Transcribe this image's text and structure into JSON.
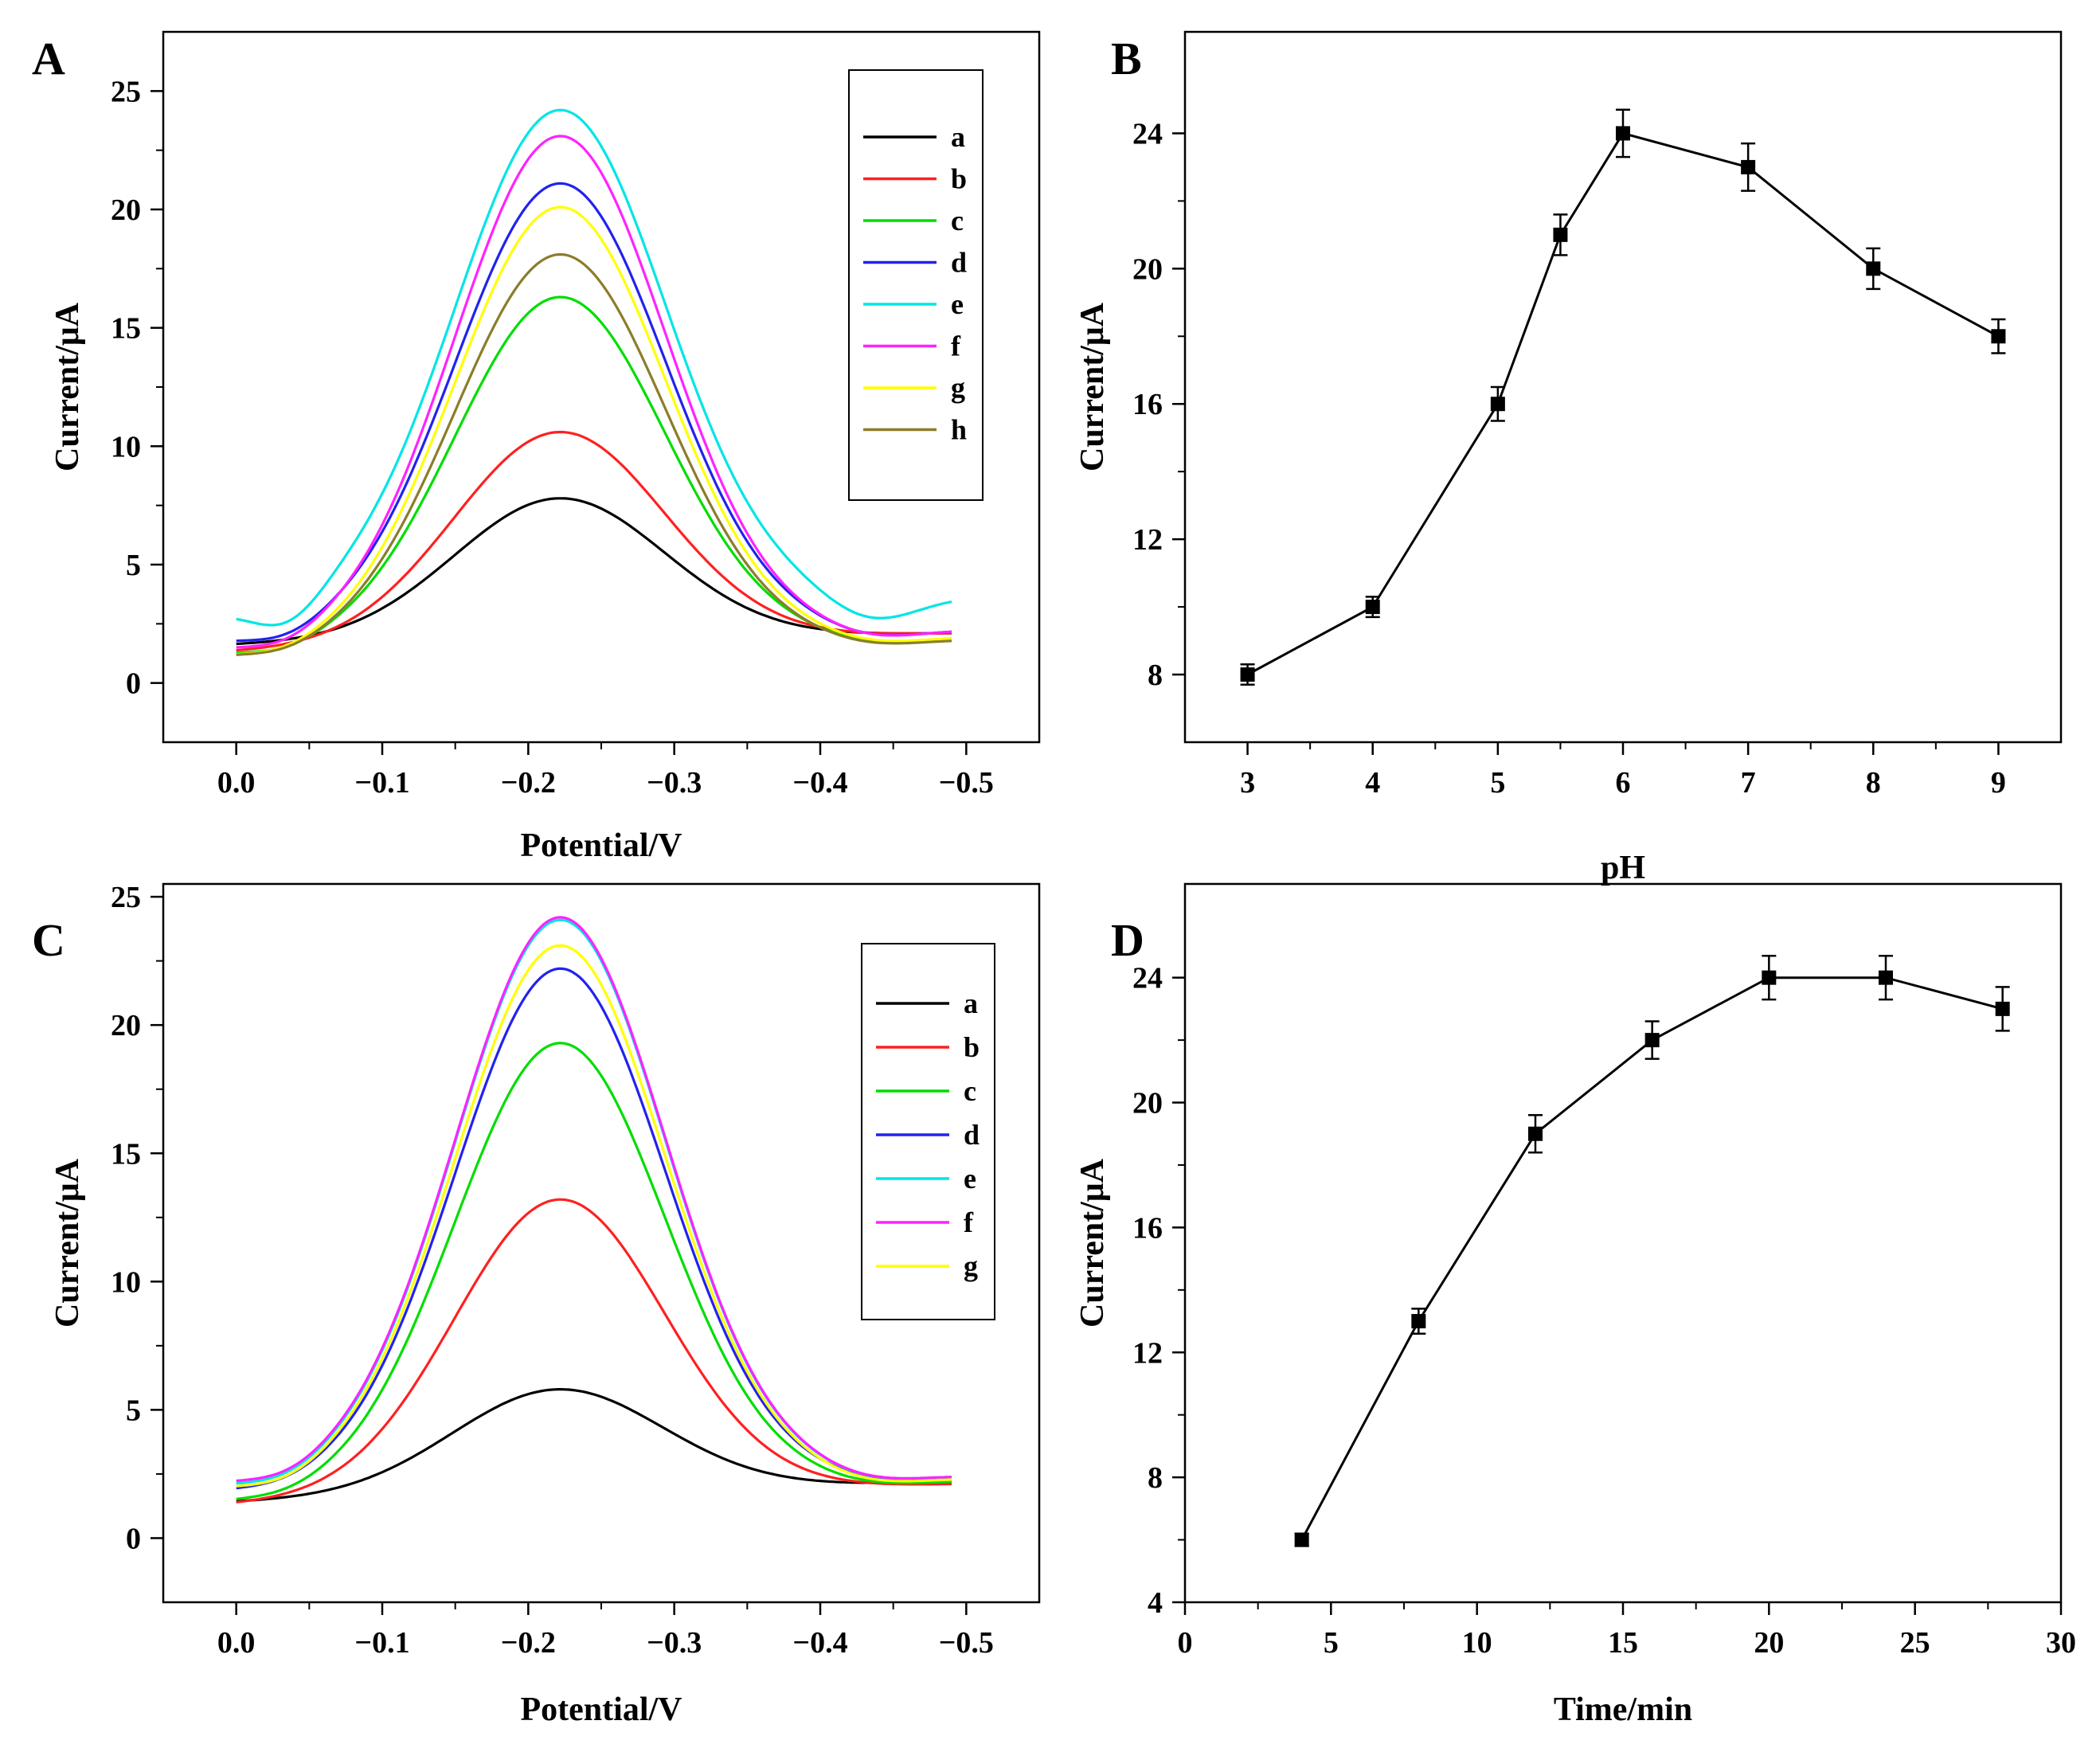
{
  "chart_data": [
    {
      "panel": "A",
      "type": "line",
      "xlabel": "Potential/V",
      "ylabel": "Current/μA",
      "xlim": [
        0.05,
        -0.55
      ],
      "ylim": [
        -2.5,
        27.5
      ],
      "xticks": [
        0.0,
        -0.1,
        -0.2,
        -0.3,
        -0.4,
        -0.5
      ],
      "xtick_labels": [
        "0.0",
        "−0.1",
        "−0.2",
        "−0.3",
        "−0.4",
        "−0.5"
      ],
      "yticks": [
        0,
        5,
        10,
        15,
        20,
        25
      ],
      "ytick_labels": [
        "0",
        "5",
        "10",
        "15",
        "20",
        "25"
      ],
      "legend": "top-right",
      "series": [
        {
          "name": "a",
          "color": "#000000",
          "peak": 7.8,
          "base_left": 1.6,
          "base_right": 2.1,
          "dip": 0.0
        },
        {
          "name": "b",
          "color": "#ff2020",
          "peak": 10.6,
          "base_left": 1.3,
          "base_right": 2.1,
          "dip": 0.0
        },
        {
          "name": "c",
          "color": "#00dd00",
          "peak": 16.3,
          "base_left": 1.2,
          "base_right": 1.9,
          "dip": 0.2
        },
        {
          "name": "d",
          "color": "#2222ee",
          "peak": 21.1,
          "base_left": 1.7,
          "base_right": 2.2,
          "dip": 0.3
        },
        {
          "name": "e",
          "color": "#00e5e5",
          "peak": 24.2,
          "base_left": 2.8,
          "base_right": 3.6,
          "dip": 1.0
        },
        {
          "name": "f",
          "color": "#ff22ff",
          "peak": 23.1,
          "base_left": 1.4,
          "base_right": 2.2,
          "dip": 0.3
        },
        {
          "name": "g",
          "color": "#ffff00",
          "peak": 20.1,
          "base_left": 1.1,
          "base_right": 1.9,
          "dip": 0.2
        },
        {
          "name": "h",
          "color": "#8b7d2a",
          "peak": 18.1,
          "base_left": 1.1,
          "base_right": 1.8,
          "dip": 0.2
        }
      ]
    },
    {
      "panel": "B",
      "type": "line",
      "xlabel": "pH",
      "ylabel": "Current/μA",
      "xlim": [
        2.5,
        9.5
      ],
      "ylim": [
        6,
        27
      ],
      "xticks": [
        3,
        4,
        5,
        6,
        7,
        8,
        9
      ],
      "xtick_labels": [
        "3",
        "4",
        "5",
        "6",
        "7",
        "8",
        "9"
      ],
      "yticks": [
        8,
        12,
        16,
        20,
        24
      ],
      "ytick_labels": [
        "8",
        "12",
        "16",
        "20",
        "24"
      ],
      "points": [
        {
          "label": "3",
          "x": 3,
          "y": 8,
          "err": 0.3
        },
        {
          "label": "4",
          "x": 4,
          "y": 10,
          "err": 0.3
        },
        {
          "label": "5",
          "x": 5,
          "y": 16,
          "err": 0.5
        },
        {
          "label": "5.5",
          "x": 5.5,
          "y": 21,
          "err": 0.6
        },
        {
          "label": "6",
          "x": 6,
          "y": 24,
          "err": 0.7
        },
        {
          "label": "7",
          "x": 7,
          "y": 23,
          "err": 0.7
        },
        {
          "label": "8",
          "x": 8,
          "y": 20,
          "err": 0.6
        },
        {
          "label": "9",
          "x": 9,
          "y": 18,
          "err": 0.5
        }
      ]
    },
    {
      "panel": "C",
      "type": "line",
      "xlabel": "Potential/V",
      "ylabel": "Current/μA",
      "xlim": [
        0.05,
        -0.55
      ],
      "ylim": [
        -2.5,
        25.5
      ],
      "xticks": [
        0.0,
        -0.1,
        -0.2,
        -0.3,
        -0.4,
        -0.5
      ],
      "xtick_labels": [
        "0.0",
        "−0.1",
        "−0.2",
        "−0.3",
        "−0.4",
        "−0.5"
      ],
      "yticks": [
        0,
        5,
        10,
        15,
        20,
        25
      ],
      "ytick_labels": [
        "0",
        "5",
        "10",
        "15",
        "20",
        "25"
      ],
      "legend": "top-right",
      "series": [
        {
          "name": "a",
          "color": "#000000",
          "peak": 5.8,
          "base_left": 1.4,
          "base_right": 2.2,
          "dip": 0.0
        },
        {
          "name": "b",
          "color": "#ff2020",
          "peak": 13.2,
          "base_left": 1.3,
          "base_right": 2.1,
          "dip": 0.0
        },
        {
          "name": "c",
          "color": "#00dd00",
          "peak": 19.3,
          "base_left": 1.4,
          "base_right": 2.2,
          "dip": 0.1
        },
        {
          "name": "d",
          "color": "#2222ee",
          "peak": 22.2,
          "base_left": 1.8,
          "base_right": 2.3,
          "dip": 0.1
        },
        {
          "name": "e",
          "color": "#00e5e5",
          "peak": 24.1,
          "base_left": 2.0,
          "base_right": 2.4,
          "dip": 0.2
        },
        {
          "name": "f",
          "color": "#ff22ff",
          "peak": 24.2,
          "base_left": 2.1,
          "base_right": 2.4,
          "dip": 0.2
        },
        {
          "name": "g",
          "color": "#ffff00",
          "peak": 23.1,
          "base_left": 1.9,
          "base_right": 2.3,
          "dip": 0.2
        }
      ]
    },
    {
      "panel": "D",
      "type": "line",
      "xlabel": "Time/min",
      "ylabel": "Current/μA",
      "xlim": [
        0,
        30
      ],
      "ylim": [
        4,
        27
      ],
      "xticks": [
        0,
        5,
        10,
        15,
        20,
        25,
        30
      ],
      "xtick_labels": [
        "0",
        "5",
        "10",
        "15",
        "20",
        "25",
        "30"
      ],
      "yticks": [
        4,
        8,
        12,
        16,
        20,
        24
      ],
      "ytick_labels": [
        "4",
        "8",
        "12",
        "16",
        "20",
        "24"
      ],
      "points": [
        {
          "label": "4",
          "x": 4,
          "y": 6,
          "err": 0.2
        },
        {
          "label": "8",
          "x": 8,
          "y": 13,
          "err": 0.4
        },
        {
          "label": "12",
          "x": 12,
          "y": 19,
          "err": 0.6
        },
        {
          "label": "16",
          "x": 16,
          "y": 22,
          "err": 0.6
        },
        {
          "label": "20",
          "x": 20,
          "y": 24,
          "err": 0.7
        },
        {
          "label": "24",
          "x": 24,
          "y": 24,
          "err": 0.7
        },
        {
          "label": "28",
          "x": 28,
          "y": 23,
          "err": 0.7
        }
      ]
    }
  ]
}
